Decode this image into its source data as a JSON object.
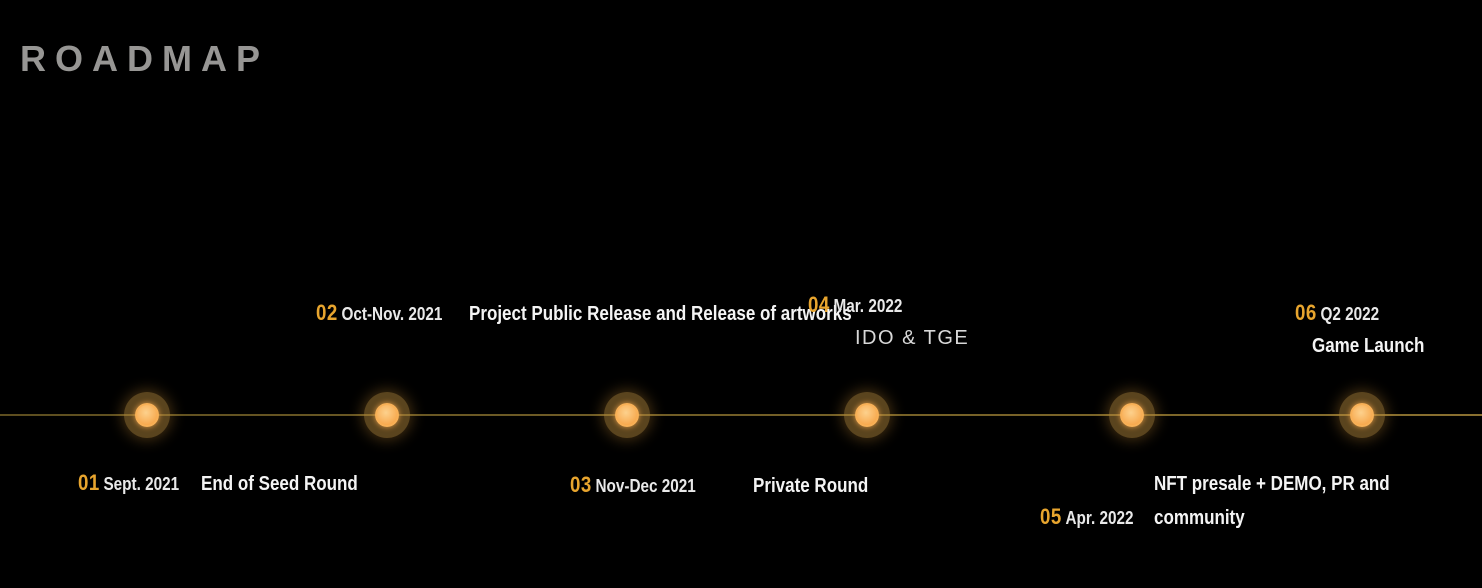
{
  "page": {
    "title": "ROADMAP"
  },
  "colors": {
    "background": "#000000",
    "accent_amber": "#e8a52e",
    "dot_fill": "#f7a94e",
    "dot_halo": "#5c4a24",
    "line": "#6f5c26",
    "title_gray": "#979694",
    "text_white": "#f4f4f4"
  },
  "timeline": {
    "dot_count": 6,
    "orientation": "horizontal"
  },
  "milestones": [
    {
      "number": "01",
      "date": "Sept. 2021",
      "title": "End of Seed Round",
      "position": "below"
    },
    {
      "number": "02",
      "date": "Oct-Nov. 2021",
      "title": "Project Public Release and Release of artworks",
      "position": "above"
    },
    {
      "number": "03",
      "date": "Nov-Dec 2021",
      "title": "Private Round",
      "position": "below"
    },
    {
      "number": "04",
      "date": "Mar. 2022",
      "title": "IDO & TGE",
      "position": "above"
    },
    {
      "number": "05",
      "date": "Apr. 2022",
      "title": "NFT presale + DEMO, PR and community",
      "position": "below"
    },
    {
      "number": "06",
      "date": "Q2 2022",
      "title": "Game Launch",
      "position": "above"
    }
  ]
}
